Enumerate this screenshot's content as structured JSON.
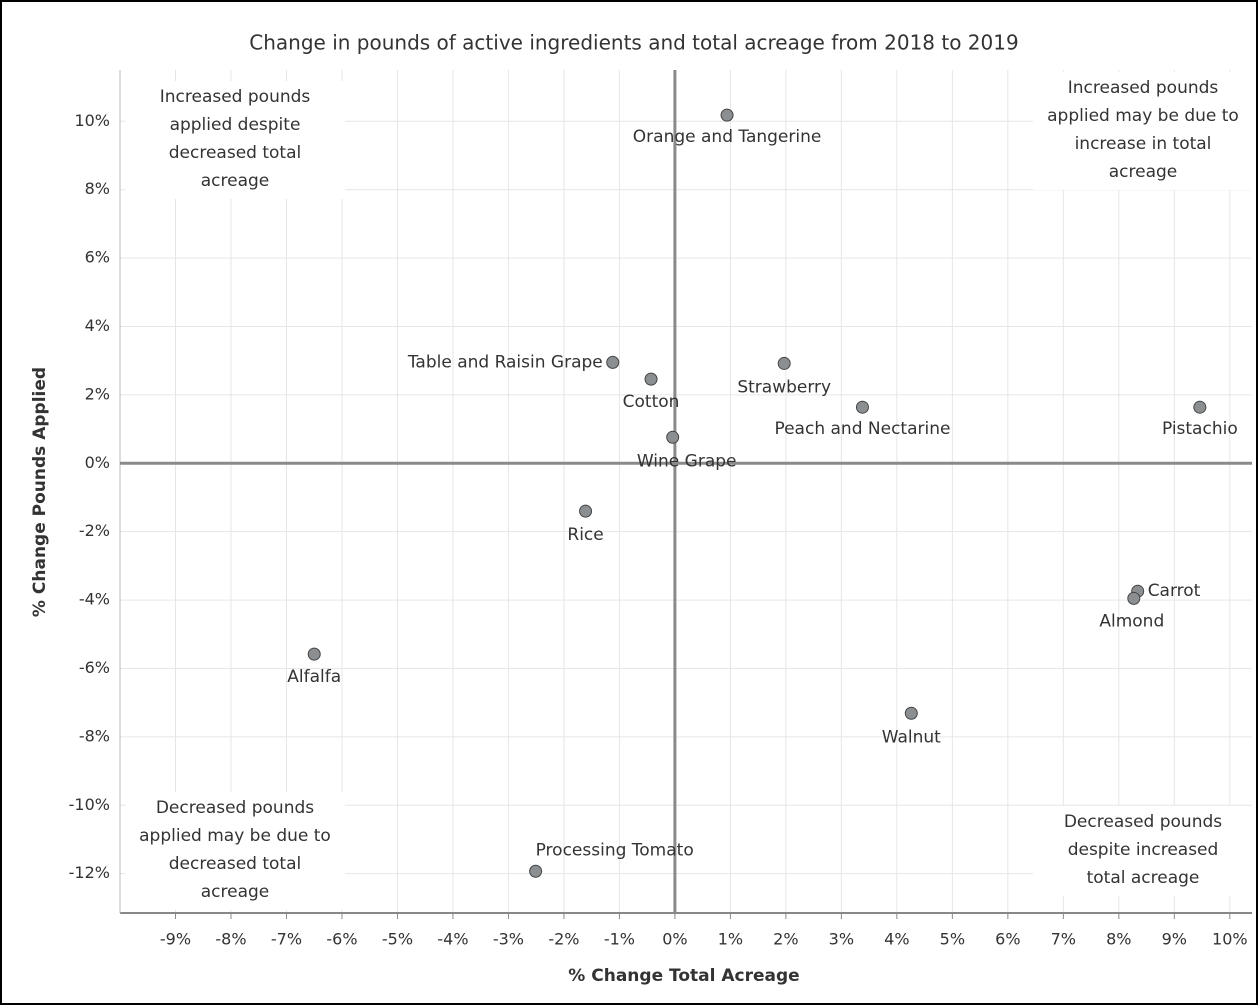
{
  "chart_data": {
    "type": "scatter",
    "title": "Change in pounds of active ingredients and total acreage from 2018 to 2019",
    "x_label": "% Change Total Acreage",
    "y_label": "% Change Pounds Applied",
    "labels": [
      "Orange and Tangerine",
      "Table and Raisin Grape",
      "Cotton",
      "Strawberry",
      "Peach and Nectarine",
      "Pistachio",
      "Wine Grape",
      "Rice",
      "Carrot",
      "Almond",
      "Alfalfa",
      "Walnut",
      "Processing Tomato"
    ],
    "x": [
      0.94,
      -1.12,
      -0.43,
      1.97,
      3.38,
      9.46,
      -0.04,
      -1.61,
      8.34,
      8.27,
      -6.5,
      4.26,
      -2.51
    ],
    "values": [
      10.18,
      2.95,
      2.46,
      2.92,
      1.64,
      1.64,
      0.76,
      -1.4,
      -3.74,
      -3.95,
      -5.58,
      -7.31,
      -11.93
    ],
    "color": "#8c8f91",
    "xlim": [
      -10,
      10.4
    ],
    "ylim": [
      -13.15,
      11.5
    ],
    "xticks": [
      {
        "value": -9,
        "label": "-9%"
      },
      {
        "value": -8,
        "label": "-8%"
      },
      {
        "value": -7,
        "label": "-7%"
      },
      {
        "value": -6,
        "label": "-6%"
      },
      {
        "value": -5,
        "label": "-5%"
      },
      {
        "value": -4,
        "label": "-4%"
      },
      {
        "value": -3,
        "label": "-3%"
      },
      {
        "value": -2,
        "label": "-2%"
      },
      {
        "value": -1,
        "label": "-1%"
      },
      {
        "value": 0,
        "label": "0%"
      },
      {
        "value": 1,
        "label": "1%"
      },
      {
        "value": 2,
        "label": "2%"
      },
      {
        "value": 3,
        "label": "3%"
      },
      {
        "value": 4,
        "label": "4%"
      },
      {
        "value": 5,
        "label": "5%"
      },
      {
        "value": 6,
        "label": "6%"
      },
      {
        "value": 7,
        "label": "7%"
      },
      {
        "value": 8,
        "label": "8%"
      },
      {
        "value": 9,
        "label": "9%"
      },
      {
        "value": 10,
        "label": "10%"
      }
    ],
    "yticks": [
      {
        "value": -12,
        "label": "-12%"
      },
      {
        "value": -10,
        "label": "-10%"
      },
      {
        "value": -8,
        "label": "-8%"
      },
      {
        "value": -6,
        "label": "-6%"
      },
      {
        "value": -4,
        "label": "-4%"
      },
      {
        "value": -2,
        "label": "-2%"
      },
      {
        "value": 0,
        "label": "0%"
      },
      {
        "value": 2,
        "label": "2%"
      },
      {
        "value": 4,
        "label": "4%"
      },
      {
        "value": 6,
        "label": "6%"
      },
      {
        "value": 8,
        "label": "8%"
      },
      {
        "value": 10,
        "label": "10%"
      }
    ],
    "grid": true,
    "annotations": [
      [
        "Increased pounds",
        "applied despite",
        "decreased total",
        "acreage"
      ],
      [
        "Increased pounds",
        "applied may be due to",
        "increase in total",
        "acreage"
      ],
      [
        "Decreased pounds",
        "applied may be due to",
        "decreased total",
        "acreage"
      ],
      [
        "Decreased pounds",
        "despite increased",
        "total acreage"
      ]
    ]
  }
}
